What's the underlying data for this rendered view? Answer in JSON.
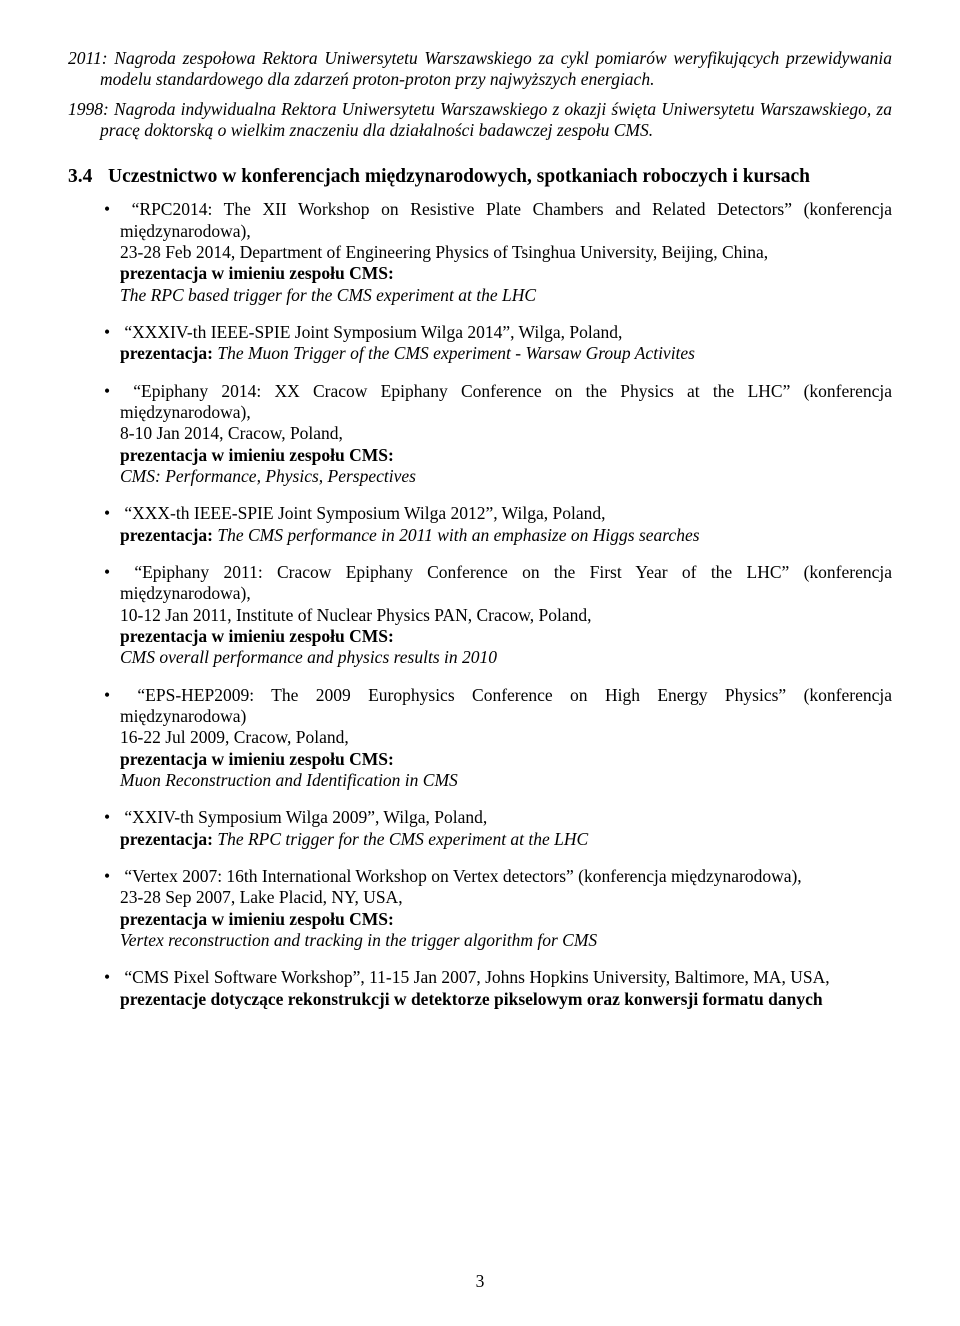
{
  "intro": {
    "p1_year": "2011:",
    "p1_text": " Nagroda zespołowa Rektora Uniwersytetu Warszawskiego za cykl pomiarów weryfikujących przewidywania modelu standardowego dla zdarzeń proton-proton przy najwyższych energiach.",
    "p2_year": "1998:",
    "p2_text": " Nagroda indywidualna Rektora Uniwersytetu Warszawskiego z okazji święta Uniwersytetu Warszawskiego, za pracę doktorską o wielkim znaczeniu dla działalności badawczej zespołu CMS."
  },
  "section": {
    "num": "3.4",
    "title": "Uczestnictwo w konferencjach międzynarodowych, spotkaniach roboczych i kursach"
  },
  "items": [
    {
      "l1": "“RPC2014: The XII Workshop on Resistive Plate Chambers and Related Detectors” (konferencja międzynarodowa),",
      "l2": "23-28 Feb 2014, Department of Engineering Physics of Tsinghua University, Beijing, China,",
      "l3b": "prezentacja w imieniu zespołu CMS:",
      "l4i": "The RPC based trigger for the CMS experiment at the LHC"
    },
    {
      "l1": "“XXXIV-th IEEE-SPIE Joint Symposium Wilga 2014”, Wilga, Poland,",
      "l3b": "prezentacja:",
      "l4i": " The Muon Trigger of the CMS experiment - Warsaw Group Activites"
    },
    {
      "l1": "“Epiphany 2014: XX Cracow Epiphany Conference on the Physics at the LHC” (konferencja międzynarodowa),",
      "l2": "8-10 Jan 2014, Cracow, Poland,",
      "l3b": "prezentacja w imieniu zespołu CMS:",
      "l4i": "CMS: Performance, Physics, Perspectives"
    },
    {
      "l1": "“XXX-th IEEE-SPIE Joint Symposium Wilga 2012”, Wilga, Poland,",
      "l3b": "prezentacja:",
      "l4i": " The CMS performance in 2011 with an emphasize on Higgs searches"
    },
    {
      "l1": "“Epiphany 2011: Cracow Epiphany Conference on the First Year of the LHC” (konferencja międzynarodowa),",
      "l2": "10-12 Jan 2011, Institute of Nuclear Physics PAN, Cracow, Poland,",
      "l3b": "prezentacja w imieniu zespołu CMS:",
      "l4i": "CMS overall performance and physics results in 2010"
    },
    {
      "l1": "“EPS-HEP2009: The 2009 Europhysics Conference on High Energy Physics” (konferencja międzynarodowa)",
      "l2": "16-22 Jul 2009, Cracow, Poland,",
      "l3b": "prezentacja w imieniu zespołu CMS:",
      "l4i": "Muon Reconstruction and Identification in CMS"
    },
    {
      "l1": "“XXIV-th Symposium Wilga 2009”, Wilga, Poland,",
      "l3b": "prezentacja:",
      "l4i": " The RPC trigger for the CMS experiment at the LHC"
    },
    {
      "l1": "“Vertex 2007: 16th International Workshop on Vertex detectors” (konferencja międzynarodowa),",
      "l2": "23-28 Sep 2007, Lake Placid, NY, USA,",
      "l3b": "prezentacja w imieniu zespołu CMS:",
      "l4i": "Vertex reconstruction and tracking in the trigger algorithm for CMS"
    },
    {
      "l1": "“CMS Pixel Software Workshop”, 11-15 Jan 2007, Johns Hopkins University, Baltimore, MA, USA,",
      "l3b": "prezentacje dotyczące rekonstrukcji w detektorze pikselowym oraz konwersji formatu danych"
    }
  ],
  "pagenum": "3"
}
